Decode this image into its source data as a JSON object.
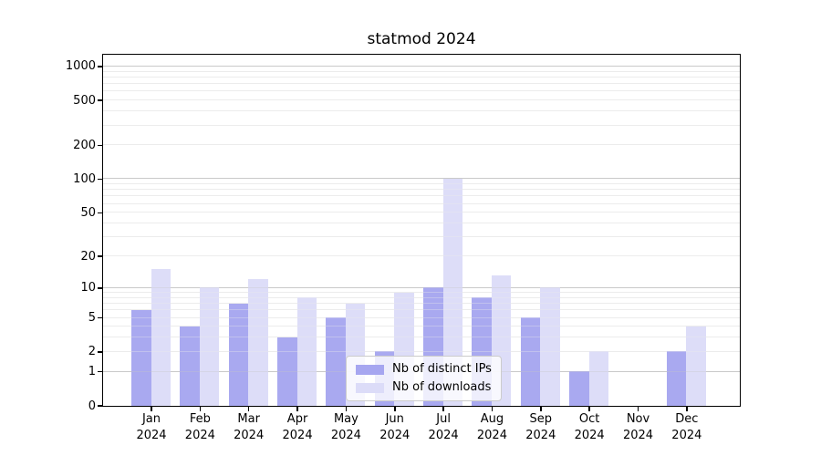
{
  "title": "statmod 2024",
  "chart_data": {
    "type": "bar",
    "title": "statmod 2024",
    "yscale": "log1p",
    "xlabel": "",
    "ylabel": "",
    "categories": [
      "Jan",
      "Feb",
      "Mar",
      "Apr",
      "May",
      "Jun",
      "Jul",
      "Aug",
      "Sep",
      "Oct",
      "Nov",
      "Dec"
    ],
    "year": "2024",
    "series": [
      {
        "name": "Nb of distinct IPs",
        "color": "#a6a6f0",
        "values": [
          6,
          4,
          7,
          3,
          5,
          2,
          10,
          8,
          5,
          1,
          0,
          2
        ]
      },
      {
        "name": "Nb of downloads",
        "color": "#dcdcf8",
        "values": [
          15,
          10,
          12,
          8,
          7,
          9,
          100,
          13,
          10,
          2,
          0,
          4
        ]
      }
    ],
    "y_ticks": [
      0,
      1,
      2,
      5,
      10,
      20,
      50,
      100,
      200,
      500,
      1000
    ],
    "ylim": [
      0,
      1260
    ],
    "grid": true,
    "grid_major_values": [
      1,
      10,
      100,
      1000
    ],
    "legend_position": "lower center",
    "colors": {
      "grid_major": "#c9c9c9",
      "grid_minor": "#ececec",
      "spine": "#000000"
    }
  }
}
